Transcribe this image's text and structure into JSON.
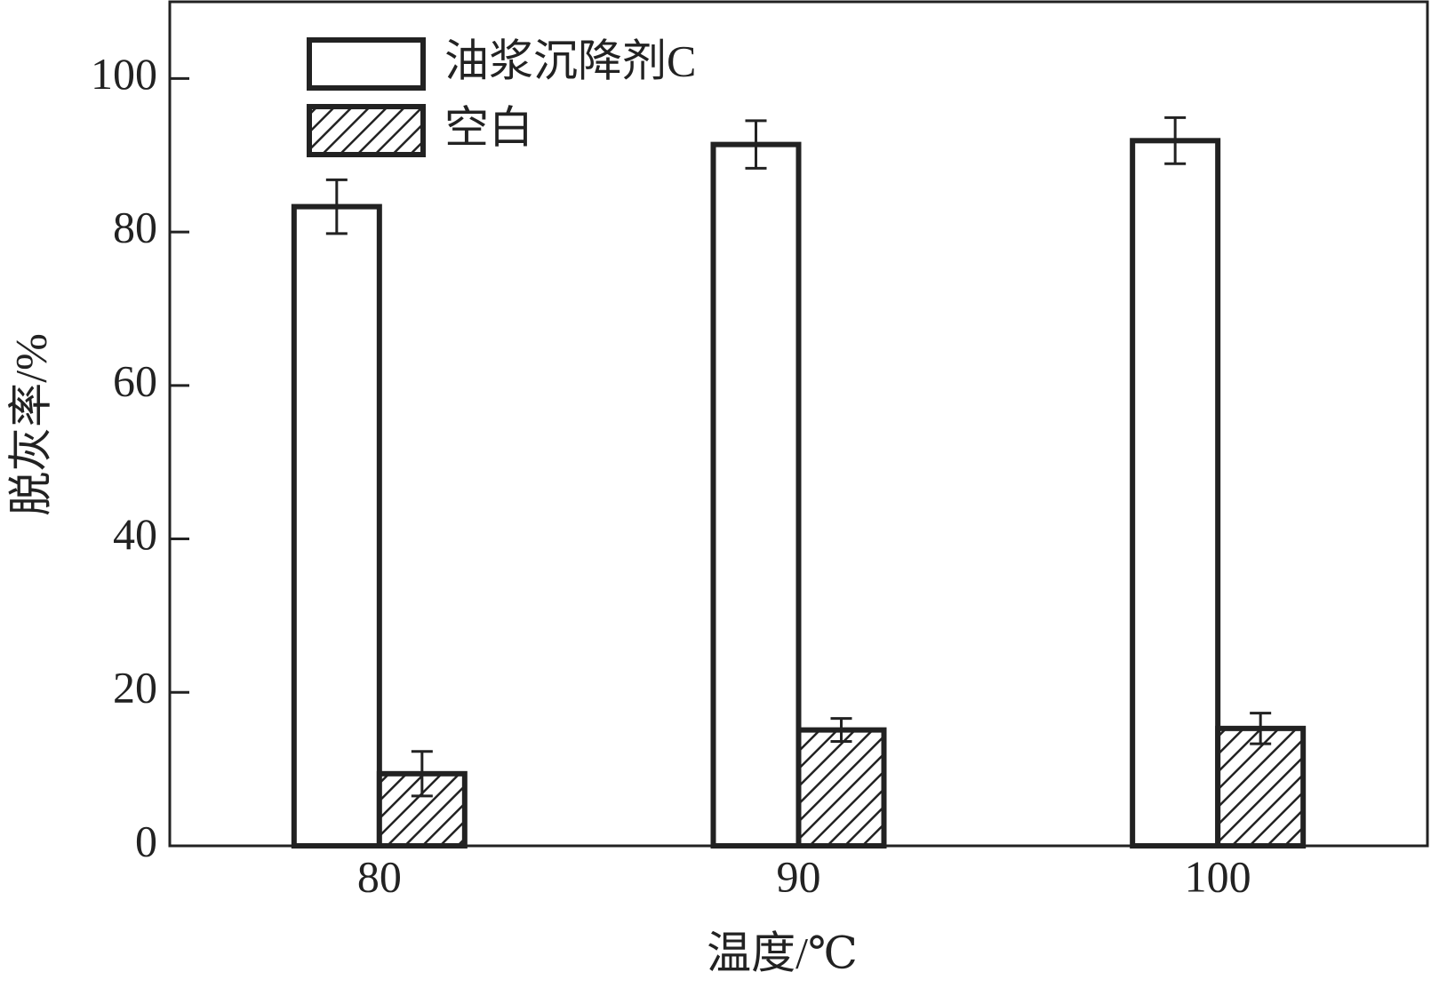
{
  "chart_data": {
    "type": "bar",
    "xlabel": "温度/℃",
    "ylabel": "脱灰率/%",
    "categories": [
      "80",
      "90",
      "100"
    ],
    "series": [
      {
        "name": "油浆沉降剂C",
        "color": "#ffffff",
        "hatch": false,
        "values": [
          83.3,
          91.4,
          91.9
        ],
        "errors": [
          3.5,
          3.1,
          3.0
        ]
      },
      {
        "name": "空白",
        "color": "#ffffff",
        "hatch": true,
        "values": [
          9.4,
          15.1,
          15.3
        ],
        "errors": [
          2.9,
          1.5,
          2.0
        ]
      }
    ],
    "ylim": [
      0,
      110
    ],
    "yticks": [
      0,
      20,
      40,
      60,
      80,
      100
    ],
    "grid": false,
    "legend": "upper left"
  }
}
